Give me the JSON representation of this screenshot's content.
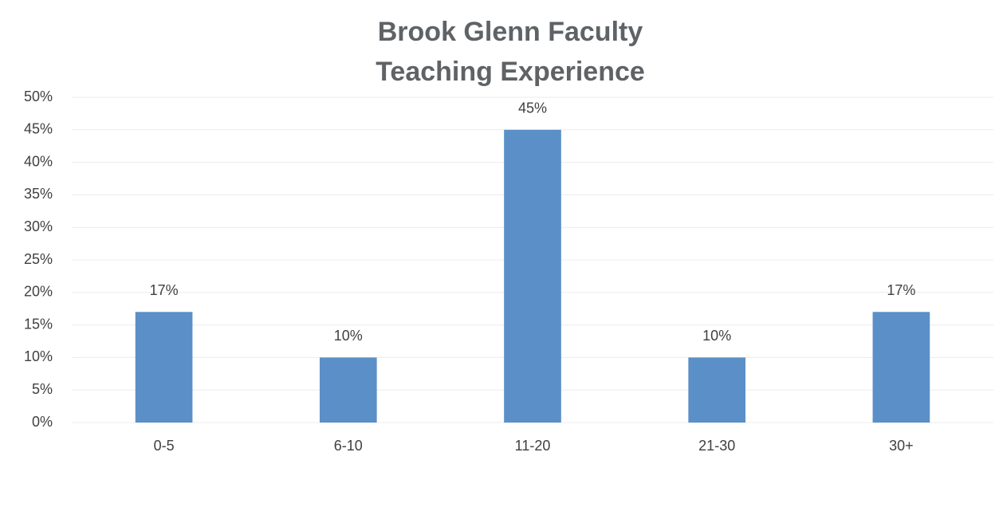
{
  "chart_data": {
    "type": "bar",
    "title": [
      "Brook Glenn Faculty",
      "Teaching Experience"
    ],
    "categories": [
      "0-5",
      "6-10",
      "11-20",
      "21-30",
      "30+"
    ],
    "values": [
      17,
      10,
      45,
      10,
      17
    ],
    "value_labels": [
      "17%",
      "10%",
      "45%",
      "10%",
      "17%"
    ],
    "color": "#5b8fc8",
    "ylim": [
      0,
      50
    ],
    "yticks": [
      {
        "value": 0,
        "label": "0%"
      },
      {
        "value": 5,
        "label": "5%"
      },
      {
        "value": 10,
        "label": "10%"
      },
      {
        "value": 15,
        "label": "15%"
      },
      {
        "value": 20,
        "label": "20%"
      },
      {
        "value": 25,
        "label": "25%"
      },
      {
        "value": 30,
        "label": "30%"
      },
      {
        "value": 35,
        "label": "35%"
      },
      {
        "value": 40,
        "label": "40%"
      },
      {
        "value": 45,
        "label": "45%"
      },
      {
        "value": 50,
        "label": "50%"
      }
    ],
    "grid": true
  }
}
